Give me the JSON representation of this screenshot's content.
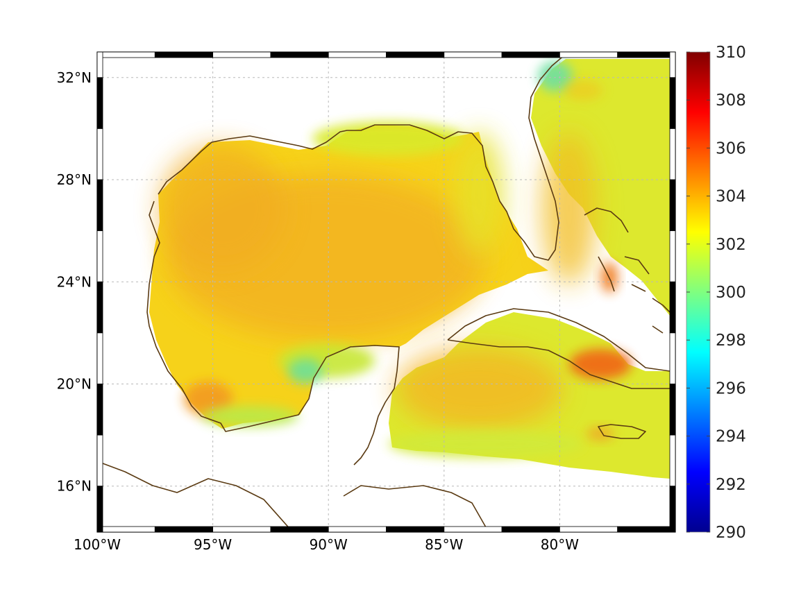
{
  "map": {
    "region": "Gulf of Mexico and Caribbean",
    "lon_range": [
      -100,
      -75
    ],
    "lat_range": [
      14.2,
      33
    ],
    "lon_ticks": [
      {
        "value": -100,
        "label": "100°W"
      },
      {
        "value": -95,
        "label": "95°W"
      },
      {
        "value": -90,
        "label": "90°W"
      },
      {
        "value": -85,
        "label": "85°W"
      },
      {
        "value": -80,
        "label": "80°W"
      }
    ],
    "lat_ticks": [
      {
        "value": 16,
        "label": "16°N"
      },
      {
        "value": 20,
        "label": "20°N"
      },
      {
        "value": 24,
        "label": "24°N"
      },
      {
        "value": 28,
        "label": "28°N"
      },
      {
        "value": 32,
        "label": "32°N"
      }
    ],
    "grid": true,
    "frame": "black-white checkered border",
    "coastline_color": "#5a3a12"
  },
  "colorbar": {
    "min": 290,
    "max": 310,
    "colormap": "jet",
    "placement": "right",
    "ticks": [
      {
        "value": 290,
        "label": "290"
      },
      {
        "value": 292,
        "label": "292"
      },
      {
        "value": 294,
        "label": "294"
      },
      {
        "value": 296,
        "label": "296"
      },
      {
        "value": 298,
        "label": "298"
      },
      {
        "value": 300,
        "label": "300"
      },
      {
        "value": 302,
        "label": "302"
      },
      {
        "value": 304,
        "label": "304"
      },
      {
        "value": 306,
        "label": "306"
      },
      {
        "value": 308,
        "label": "308"
      },
      {
        "value": 310,
        "label": "310"
      }
    ]
  }
}
